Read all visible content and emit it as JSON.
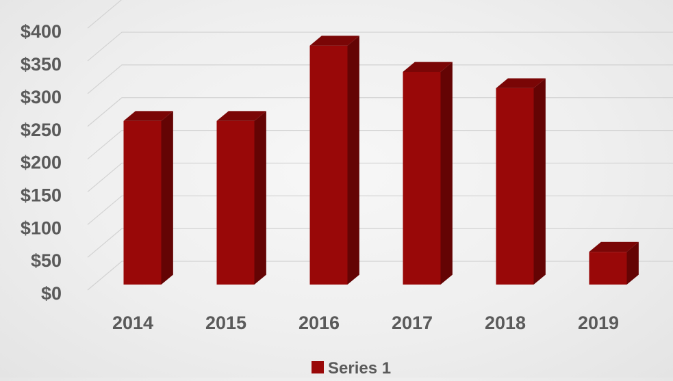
{
  "chart_data": {
    "type": "bar",
    "categories": [
      "2014",
      "2015",
      "2016",
      "2017",
      "2018",
      "2019"
    ],
    "series": [
      {
        "name": "Series 1",
        "values": [
          250,
          250,
          365,
          325,
          300,
          50
        ]
      }
    ],
    "y_tick_labels": [
      "$0",
      "$50",
      "$100",
      "$150",
      "$200",
      "$250",
      "$300",
      "$350",
      "$400"
    ],
    "y_ticks": [
      0,
      50,
      100,
      150,
      200,
      250,
      300,
      350,
      400
    ],
    "ylim": [
      0,
      400
    ],
    "grid": true,
    "legend_position": "bottom",
    "title": "",
    "xlabel": "",
    "ylabel": ""
  },
  "colors": {
    "bar_front": "#990808",
    "bar_side": "#640404",
    "bar_top": "#7a0606",
    "gridline": "#d2d2d2",
    "text": "#5a5a5a"
  }
}
